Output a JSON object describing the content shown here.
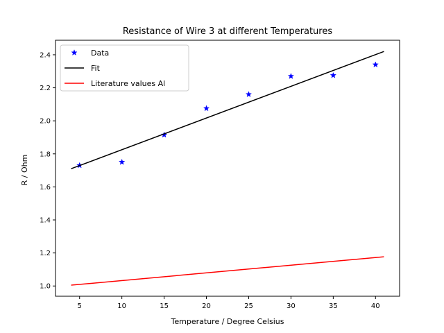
{
  "chart_data": {
    "type": "line",
    "title": "Resistance of Wire 3 at different Temperatures",
    "xlabel": "Temperature / Degree Celsius",
    "ylabel": "R / Ohm",
    "xlim": [
      2.15,
      42.85
    ],
    "ylim": [
      0.938,
      2.488
    ],
    "xticks": [
      5,
      10,
      15,
      20,
      25,
      30,
      35,
      40
    ],
    "yticks": [
      1.0,
      1.2,
      1.4,
      1.6,
      1.8,
      2.0,
      2.2,
      2.4
    ],
    "legend_position": "top-left",
    "grid": false,
    "series": [
      {
        "name": "Data",
        "kind": "scatter",
        "marker": "star",
        "color": "#0000ff",
        "x": [
          5,
          10,
          15,
          20,
          25,
          30,
          35,
          40
        ],
        "y": [
          1.73,
          1.75,
          1.915,
          2.075,
          2.16,
          2.27,
          2.275,
          2.34
        ]
      },
      {
        "name": "Fit",
        "kind": "line",
        "color": "#000000",
        "x": [
          4,
          41
        ],
        "y": [
          1.71,
          2.42
        ]
      },
      {
        "name": "Literature values Al",
        "kind": "line",
        "color": "#ff0000",
        "x": [
          4,
          41
        ],
        "y": [
          1.005,
          1.177
        ]
      }
    ]
  }
}
